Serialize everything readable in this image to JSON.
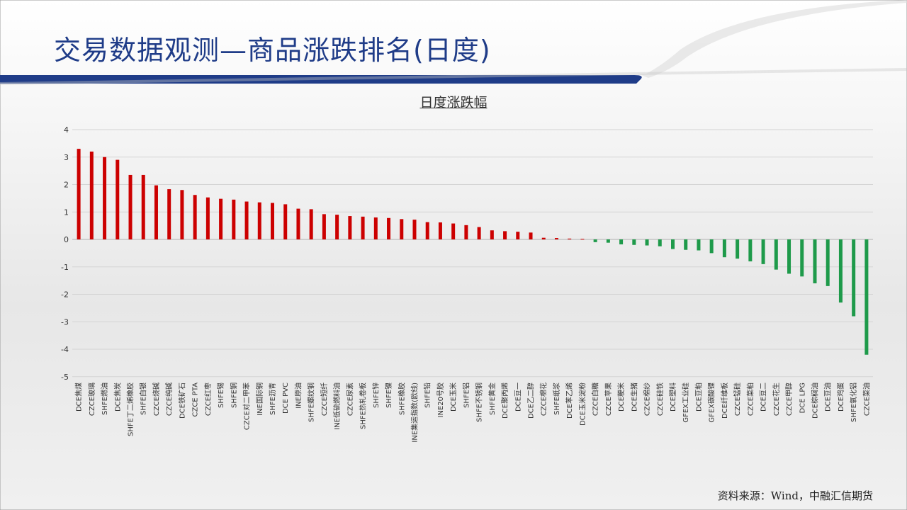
{
  "page": {
    "title": "交易数据观测—商品涨跌排名(日度)",
    "source": "资料来源：Wind，中融汇信期货"
  },
  "colors": {
    "up": "#cc0000",
    "down": "#1e9a4a",
    "title": "#1f3c88",
    "band": "#1f3c88"
  },
  "chart_data": {
    "type": "bar",
    "title": "日度涨跌幅",
    "xlabel": "",
    "ylabel": "",
    "ylim": [
      -5,
      4
    ],
    "yticks": [
      4,
      3,
      2,
      1,
      0,
      -1,
      -2,
      -3,
      -4,
      -5
    ],
    "grid": true,
    "legend": "none",
    "categories": [
      "DCE焦煤",
      "CZCE玻璃",
      "SHFE燃油",
      "DCE焦炭",
      "SHFE丁二烯橡胶",
      "SHFE白银",
      "CZCE烧碱",
      "CZCE纯碱",
      "DCE铁矿石",
      "CZCE PTA",
      "CZCE红枣",
      "SHFE锡",
      "SHFE铜",
      "CZCE对二甲苯",
      "INE国际铜",
      "SHFE沥青",
      "DCE PVC",
      "INE原油",
      "SHFE螺纹钢",
      "CZCE短纤",
      "INE低硫燃料油",
      "CZCE尿素",
      "SHFE热轧卷板",
      "SHFE锌",
      "SHFE镍",
      "SHFE橡胶",
      "INE集运指数(欧线)",
      "SHFE铅",
      "INE20号胶",
      "DCE玉米",
      "SHFE铝",
      "SHFE不锈钢",
      "SHFE黄金",
      "DCE聚丙烯",
      "DCE豆一",
      "DCE乙二醇",
      "CZCE棉花",
      "SHFE纸浆",
      "DCE苯乙烯",
      "DCE玉米淀粉",
      "CZCE白糖",
      "CZCE苹果",
      "DCE粳米",
      "DCE生猪",
      "CZCE棉纱",
      "CZCE硅铁",
      "DCE塑料",
      "GFEX工业硅",
      "DCE豆粕",
      "GFEX碳酸锂",
      "DCE纤维板",
      "CZCE锰硅",
      "CZCE菜粕",
      "DCE豆二",
      "CZCE花生",
      "CZCE甲醇",
      "DCE LPG",
      "DCE棕榈油",
      "DCE豆油",
      "DCE鸡蛋",
      "SHFE氧化铝",
      "CZCE菜油"
    ],
    "values": [
      3.3,
      3.2,
      3.0,
      2.9,
      2.35,
      2.35,
      1.97,
      1.83,
      1.8,
      1.62,
      1.53,
      1.48,
      1.45,
      1.38,
      1.35,
      1.33,
      1.28,
      1.12,
      1.1,
      0.92,
      0.9,
      0.85,
      0.83,
      0.8,
      0.78,
      0.74,
      0.72,
      0.63,
      0.62,
      0.58,
      0.52,
      0.45,
      0.33,
      0.3,
      0.28,
      0.25,
      0.06,
      0.05,
      0.03,
      0.02,
      -0.1,
      -0.12,
      -0.18,
      -0.2,
      -0.22,
      -0.25,
      -0.35,
      -0.38,
      -0.4,
      -0.5,
      -0.65,
      -0.7,
      -0.8,
      -0.9,
      -1.1,
      -1.25,
      -1.35,
      -1.6,
      -1.7,
      -2.3,
      -2.8,
      -4.2
    ]
  }
}
